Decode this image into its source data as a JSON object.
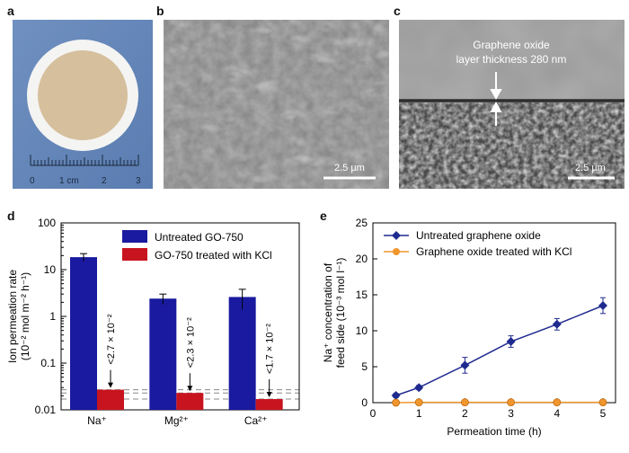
{
  "panels": {
    "a": {
      "letter": "a",
      "ruler_labels": [
        "0",
        "1 cm",
        "2",
        "3"
      ]
    },
    "b": {
      "letter": "b",
      "scale_bar": "2.5 µm"
    },
    "c": {
      "letter": "c",
      "annotation_line1": "Graphene oxide",
      "annotation_line2": "layer thickness 280 nm",
      "scale_bar": "2.5 µm"
    },
    "d": {
      "letter": "d"
    },
    "e": {
      "letter": "e"
    }
  },
  "colors": {
    "blue": "#1a1aa0",
    "red": "#c8141e",
    "orange": "#f0962d",
    "navy_line": "#1f2a8f"
  },
  "chart_data": [
    {
      "id": "d",
      "type": "bar",
      "ylabel_line1": "Ion permeation rate",
      "ylabel_line2": "(10^-2 mol m^-2 h^-1)",
      "yscale": "log",
      "ylim": [
        0.01,
        100
      ],
      "yticks": [
        "0.01",
        "0.1",
        "1",
        "10",
        "100"
      ],
      "categories": [
        "Na⁺",
        "Mg²⁺",
        "Ca²⁺"
      ],
      "legend_position": "top-right",
      "series": [
        {
          "name": "Untreated GO-750",
          "values": [
            18.5,
            2.4,
            2.6
          ],
          "err": [
            3.5,
            0.6,
            1.2
          ]
        },
        {
          "name": "GO-750 treated with KCl",
          "values": [
            0.027,
            0.023,
            0.017
          ]
        }
      ],
      "annotations": [
        "<2.7 × 10⁻²",
        "<2.3 × 10⁻²",
        "<1.7 × 10⁻²"
      ]
    },
    {
      "id": "e",
      "type": "line",
      "xlabel": "Permeation time (h)",
      "ylabel_line1": "Na⁺ concentration of",
      "ylabel_line2": "feed side (10⁻³ mol l⁻¹)",
      "xlim": [
        0,
        5
      ],
      "ylim": [
        0,
        25
      ],
      "xticks": [
        "0",
        "1",
        "2",
        "3",
        "4",
        "5"
      ],
      "yticks": [
        "0",
        "5",
        "10",
        "15",
        "20",
        "25"
      ],
      "legend_position": "top-left",
      "series": [
        {
          "name": "Untreated graphene oxide",
          "x": [
            0.5,
            1,
            2,
            3,
            4,
            5
          ],
          "y": [
            1.0,
            2.1,
            5.2,
            8.5,
            10.9,
            13.5
          ],
          "err": [
            0.3,
            0.3,
            1.1,
            0.8,
            0.8,
            1.1
          ]
        },
        {
          "name": "Graphene oxide treated with KCl",
          "x": [
            0.5,
            1,
            2,
            3,
            4,
            5
          ],
          "y": [
            0.0,
            0.05,
            0.05,
            0.05,
            0.05,
            0.05
          ]
        }
      ]
    }
  ]
}
